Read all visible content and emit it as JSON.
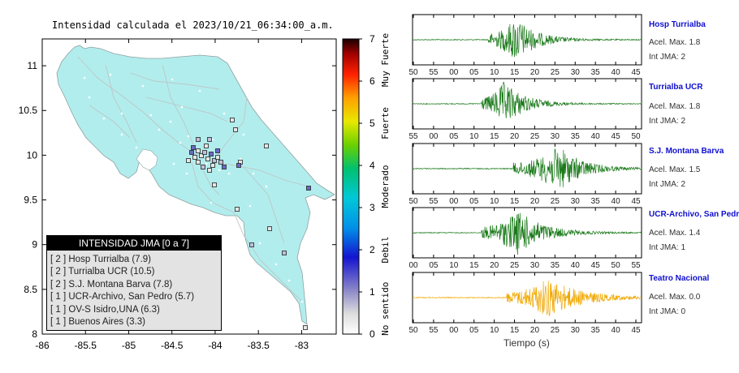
{
  "map": {
    "title": "Intensidad calculada el 2023/10/21_06:34:00_a.m.",
    "xticks": [
      "-86",
      "-85.5",
      "-85",
      "-84.5",
      "-84",
      "-83.5",
      "-83"
    ],
    "yticks": [
      "11",
      "10.5",
      "10",
      "9.5",
      "9",
      "8.5",
      "8"
    ],
    "colorbar": {
      "ticks": [
        "7",
        "6",
        "5",
        "4",
        "3",
        "2",
        "1",
        "0"
      ],
      "labels": [
        "Muy Fuerte",
        "Fuerte",
        "Moderado",
        "Debil",
        "No sentido"
      ]
    },
    "legend": {
      "title": "INTENSIDAD JMA [0 a 7]",
      "items": [
        "[ 2 ]  Hosp Turrialba (7.9)",
        "[ 2 ]  Turrialba UCR (10.5)",
        "[ 2 ]  S.J. Montana Barva (7.8)",
        "[ 1 ]  UCR-Archivo, San Pedro (5.7)",
        "[ 1 ]  OV-S Isidro,UNA (6.3)",
        "[ 1 ]  Buenos Aires (3.3)"
      ]
    }
  },
  "chart_data": [
    {
      "type": "map",
      "title": "Intensidad calculada el 2023/10/21_06:34:00_a.m.",
      "xlim": [
        -86,
        -82.6
      ],
      "ylim": [
        8,
        11.3
      ],
      "colorbar_range": [
        0,
        7
      ],
      "stations": [
        {
          "name": "Hosp Turrialba",
          "jma": 2,
          "value": 7.9
        },
        {
          "name": "Turrialba UCR",
          "jma": 2,
          "value": 10.5
        },
        {
          "name": "S.J. Montana Barva",
          "jma": 2,
          "value": 7.8
        },
        {
          "name": "UCR-Archivo, San Pedro",
          "jma": 1,
          "value": 5.7
        },
        {
          "name": "OV-S Isidro,UNA",
          "jma": 1,
          "value": 6.3
        },
        {
          "name": "Buenos Aires",
          "jma": 1,
          "value": 3.3
        }
      ]
    },
    {
      "type": "line",
      "xlabel": "Tiempo (s)",
      "traces": [
        {
          "name": "Hosp Turrialba",
          "acc_label": "Acel. Max. 1.8",
          "jma_label": "Int JMA: 2",
          "color": "#1a7a1a",
          "onset_frac": 0.33,
          "peak_frac": 0.45,
          "decay": 0.09,
          "amp": 1.0,
          "ticks": [
            "50",
            "55",
            "00",
            "05",
            "10",
            "15",
            "20",
            "25",
            "30",
            "35",
            "40",
            "45"
          ]
        },
        {
          "name": "Turrialba UCR",
          "acc_label": "Acel. Max. 1.8",
          "jma_label": "Int JMA: 2",
          "color": "#1a7a1a",
          "onset_frac": 0.3,
          "peak_frac": 0.4,
          "decay": 0.09,
          "amp": 1.0,
          "ticks": [
            "55",
            "00",
            "05",
            "10",
            "15",
            "20",
            "25",
            "30",
            "35",
            "40",
            "45",
            "50"
          ]
        },
        {
          "name": "S.J. Montana Barva",
          "acc_label": "Acel. Max. 1.5",
          "jma_label": "Int JMA: 2",
          "color": "#1a7a1a",
          "onset_frac": 0.44,
          "peak_frac": 0.64,
          "decay": 0.1,
          "amp": 1.0,
          "ticks": [
            "50",
            "55",
            "00",
            "05",
            "10",
            "15",
            "20",
            "25",
            "30",
            "35",
            "40",
            "45"
          ]
        },
        {
          "name": "UCR-Archivo, San Pedro",
          "acc_label": "Acel. Max. 1.4",
          "jma_label": "Int JMA: 1",
          "color": "#1a7a1a",
          "onset_frac": 0.3,
          "peak_frac": 0.46,
          "decay": 0.11,
          "amp": 1.0,
          "ticks": [
            "00",
            "05",
            "10",
            "15",
            "20",
            "25",
            "30",
            "35",
            "40",
            "45",
            "50",
            "55"
          ]
        },
        {
          "name": "Teatro Nacional",
          "acc_label": "Acel. Max. 0.0",
          "jma_label": "Int JMA: 0",
          "color": "#f0a800",
          "onset_frac": 0.41,
          "peak_frac": 0.59,
          "decay": 0.14,
          "amp": 0.9,
          "ticks": [
            "50",
            "55",
            "00",
            "05",
            "10",
            "15",
            "20",
            "25",
            "30",
            "35",
            "40",
            "45"
          ]
        }
      ]
    }
  ],
  "colors": {
    "land": "#b2eded",
    "ocean": "#ffffff",
    "roads": "#c3c8c8",
    "border": "#777777"
  }
}
